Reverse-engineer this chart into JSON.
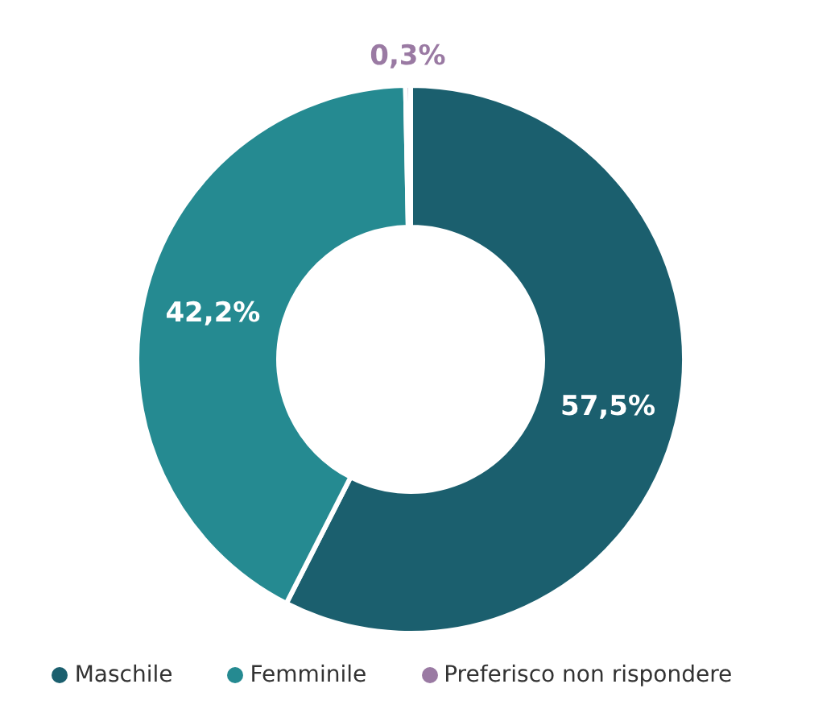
{
  "chart_data": {
    "type": "donut",
    "categories": [
      "Maschile",
      "Femminile",
      "Preferisco non rispondere"
    ],
    "values": [
      57.5,
      42.2,
      0.3
    ],
    "colors": [
      "#1b5f6e",
      "#258a91",
      "#9a7aa3"
    ],
    "value_labels": [
      "57,5%",
      "42,2%",
      "0,3%"
    ],
    "legend": "bottom"
  }
}
